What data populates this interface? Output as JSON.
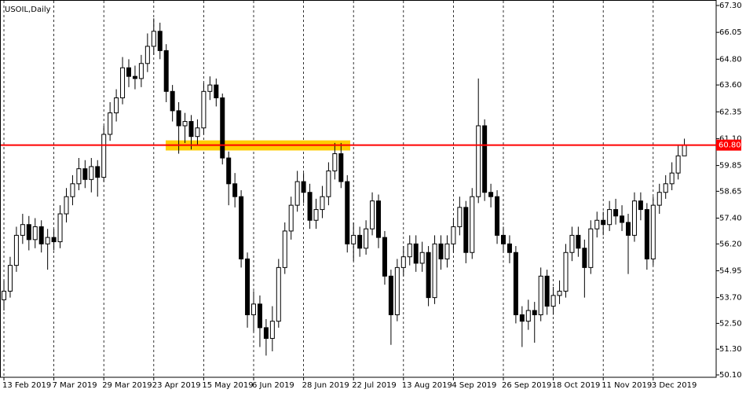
{
  "chart_data": {
    "type": "candlestick",
    "title": "USOIL,Daily",
    "categories": [
      "13 Feb 2019",
      null,
      null,
      null,
      null,
      null,
      null,
      null,
      "7 Mar 2019",
      null,
      null,
      null,
      null,
      null,
      null,
      null,
      "29 Mar 2019",
      null,
      null,
      null,
      null,
      null,
      null,
      null,
      "23 Apr 2019",
      null,
      null,
      null,
      null,
      null,
      null,
      null,
      "15 May 2019",
      null,
      null,
      null,
      null,
      null,
      null,
      null,
      "6 Jun 2019",
      null,
      null,
      null,
      null,
      null,
      null,
      null,
      "28 Jun 2019",
      null,
      null,
      null,
      null,
      null,
      null,
      null,
      "22 Jul 2019",
      null,
      null,
      null,
      null,
      null,
      null,
      null,
      "13 Aug 2019",
      null,
      null,
      null,
      null,
      null,
      null,
      null,
      "4 Sep 2019",
      null,
      null,
      null,
      null,
      null,
      null,
      null,
      "26 Sep 2019",
      null,
      null,
      null,
      null,
      null,
      null,
      null,
      "18 Oct 2019",
      null,
      null,
      null,
      null,
      null,
      null,
      null,
      "11 Nov 2019",
      null,
      null,
      null,
      null,
      null,
      null,
      null,
      "3 Dec 2019",
      null,
      null,
      null,
      null,
      null
    ],
    "open": [
      53.6,
      54.0,
      55.2,
      56.6,
      57.1,
      56.4,
      57.0,
      56.2,
      56.5,
      56.3,
      57.6,
      58.4,
      59.0,
      59.7,
      59.2,
      59.8,
      59.3,
      61.3,
      62.3,
      63.0,
      64.4,
      64.0,
      63.9,
      64.6,
      65.4,
      66.1,
      65.2,
      63.3,
      62.4,
      61.7,
      61.9,
      61.2,
      61.6,
      63.3,
      63.6,
      63.0,
      60.2,
      59.0,
      58.4,
      55.5,
      52.9,
      53.4,
      52.3,
      51.8,
      52.6,
      55.1,
      56.8,
      58.0,
      59.1,
      58.6,
      57.3,
      57.8,
      58.4,
      59.6,
      60.4,
      59.1,
      56.2,
      56.6,
      56.0,
      56.9,
      58.2,
      56.5,
      54.7,
      52.9,
      55.1,
      55.6,
      56.2,
      55.3,
      55.8,
      53.7,
      56.2,
      55.5,
      56.2,
      57.0,
      57.9,
      55.8,
      58.4,
      61.7,
      58.6,
      58.4,
      56.6,
      56.2,
      55.8,
      52.9,
      52.6,
      53.1,
      52.9,
      54.7,
      53.3,
      53.8,
      54.0,
      55.8,
      56.6,
      56.0,
      55.1,
      56.9,
      57.3,
      57.1,
      57.8,
      57.5,
      57.2,
      56.6,
      58.2,
      57.8,
      55.5,
      58.0,
      58.6,
      59.0,
      59.5,
      60.3
    ],
    "high": [
      54.5,
      55.6,
      57.0,
      57.6,
      57.5,
      57.4,
      57.3,
      56.9,
      56.9,
      58.0,
      58.8,
      59.4,
      60.2,
      60.1,
      60.2,
      60.1,
      61.7,
      62.8,
      63.4,
      64.9,
      64.8,
      64.5,
      65.0,
      66.0,
      66.7,
      66.5,
      65.5,
      63.6,
      62.8,
      62.3,
      62.2,
      62.0,
      63.7,
      64.0,
      63.9,
      63.2,
      60.5,
      59.5,
      58.7,
      55.8,
      54.0,
      53.8,
      52.7,
      53.3,
      55.5,
      57.2,
      58.4,
      59.6,
      59.5,
      59.0,
      58.3,
      58.9,
      60.0,
      60.9,
      60.9,
      59.4,
      57.2,
      57.0,
      57.3,
      58.6,
      58.5,
      56.8,
      55.0,
      55.5,
      56.1,
      56.6,
      56.6,
      56.3,
      56.1,
      56.6,
      56.6,
      56.6,
      57.4,
      58.4,
      58.2,
      58.8,
      63.9,
      62.0,
      59.0,
      58.7,
      57.0,
      56.6,
      56.1,
      53.3,
      53.6,
      53.5,
      55.1,
      55.0,
      54.2,
      54.5,
      56.2,
      57.0,
      57.0,
      56.4,
      57.3,
      57.7,
      57.7,
      58.2,
      58.3,
      58.0,
      57.6,
      58.6,
      58.6,
      58.1,
      58.4,
      59.0,
      59.4,
      60.0,
      60.8,
      61.1
    ],
    "low": [
      53.1,
      53.7,
      54.9,
      56.2,
      55.9,
      56.0,
      55.8,
      55.0,
      55.9,
      56.0,
      57.2,
      58.0,
      58.7,
      58.8,
      58.6,
      58.4,
      59.1,
      61.0,
      61.9,
      62.7,
      63.5,
      63.4,
      63.5,
      64.2,
      65.0,
      64.8,
      62.8,
      61.9,
      60.4,
      60.9,
      60.6,
      60.8,
      61.3,
      62.9,
      62.6,
      59.9,
      58.0,
      57.9,
      55.1,
      52.3,
      52.1,
      51.4,
      51.0,
      51.2,
      52.3,
      54.8,
      56.4,
      57.7,
      58.1,
      56.9,
      56.9,
      57.4,
      58.0,
      59.2,
      58.8,
      55.8,
      55.4,
      55.6,
      55.7,
      56.6,
      56.0,
      54.3,
      51.5,
      52.6,
      54.7,
      55.2,
      54.9,
      54.9,
      53.3,
      53.4,
      55.0,
      55.1,
      55.8,
      56.6,
      55.3,
      55.5,
      58.1,
      58.2,
      57.9,
      56.2,
      55.8,
      55.3,
      52.5,
      51.4,
      52.2,
      51.6,
      52.6,
      52.9,
      52.9,
      53.4,
      53.7,
      55.4,
      55.6,
      53.7,
      54.8,
      56.5,
      56.6,
      56.8,
      57.1,
      56.8,
      54.8,
      56.3,
      57.3,
      55.0,
      55.2,
      57.6,
      58.3,
      58.7,
      59.2,
      60.3
    ],
    "close": [
      54.0,
      55.2,
      56.6,
      57.1,
      56.4,
      57.0,
      56.2,
      56.5,
      56.3,
      57.6,
      58.4,
      59.0,
      59.7,
      59.2,
      59.8,
      59.3,
      61.3,
      62.3,
      63.0,
      64.4,
      64.0,
      63.9,
      64.6,
      65.4,
      66.1,
      65.2,
      63.3,
      62.4,
      61.7,
      61.9,
      61.2,
      61.6,
      63.3,
      63.6,
      63.0,
      60.2,
      59.0,
      58.4,
      55.5,
      52.9,
      53.4,
      52.3,
      51.8,
      52.6,
      55.1,
      56.8,
      58.0,
      59.1,
      58.6,
      57.3,
      57.8,
      58.4,
      59.6,
      60.4,
      59.1,
      56.2,
      56.6,
      56.0,
      56.9,
      58.2,
      56.5,
      54.7,
      52.9,
      55.1,
      55.6,
      56.2,
      55.3,
      55.8,
      53.7,
      56.2,
      55.5,
      56.2,
      57.0,
      57.9,
      55.8,
      58.4,
      61.7,
      58.6,
      58.4,
      56.6,
      56.2,
      55.8,
      52.9,
      52.6,
      53.1,
      52.9,
      54.7,
      53.3,
      53.8,
      54.0,
      55.8,
      56.6,
      56.0,
      55.1,
      56.9,
      57.3,
      57.1,
      57.8,
      57.5,
      57.2,
      56.6,
      58.2,
      57.8,
      55.5,
      58.0,
      58.6,
      59.0,
      59.5,
      60.3,
      60.8
    ],
    "up_color": "#ffffff",
    "down_color": "#000000",
    "ylim": [
      50.1,
      67.3
    ],
    "yticks": [
      {
        "value": 67.3,
        "label": "67.30"
      },
      66.05,
      {
        "value": 64.8,
        "label": "64.80"
      },
      {
        "value": 63.6,
        "label": "63.60"
      },
      62.35,
      {
        "value": 61.1,
        "label": "61.10"
      },
      59.85,
      58.65,
      {
        "value": 57.4,
        "label": "57.40"
      },
      {
        "value": 56.2,
        "label": "56.20"
      },
      54.95,
      {
        "value": 53.7,
        "label": "53.70"
      },
      {
        "value": 52.5,
        "label": "52.50"
      },
      {
        "value": 51.3,
        "label": "51.30"
      },
      {
        "value": 50.1,
        "label": "50.10"
      }
    ],
    "grid": "vertical",
    "hline": {
      "value": 60.8,
      "label": "60.80",
      "color": "#ff0000"
    },
    "zone": {
      "low": 60.55,
      "high": 61.02,
      "color": "#ffcc00"
    }
  }
}
